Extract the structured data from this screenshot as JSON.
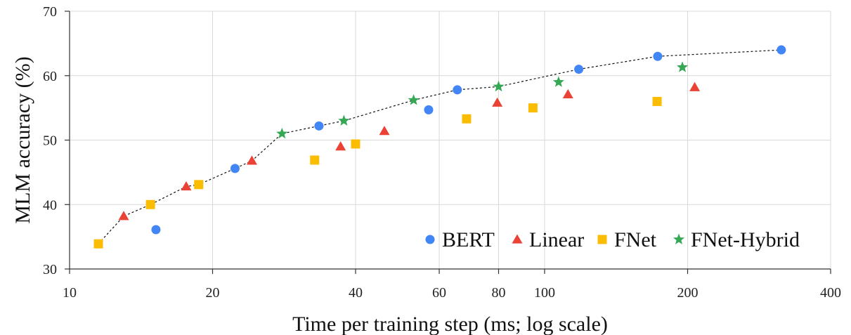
{
  "chart_data": {
    "type": "scatter",
    "xlabel": "Time per training step (ms; log scale)",
    "ylabel": "MLM accuracy (%)",
    "xscale": "log",
    "xlim": [
      10,
      400
    ],
    "ylim": [
      30,
      70
    ],
    "x_ticks": [
      10,
      20,
      40,
      60,
      80,
      100,
      200,
      400
    ],
    "y_ticks": [
      30,
      40,
      50,
      60,
      70
    ],
    "grid": true,
    "legend_position": "bottom-right",
    "series": [
      {
        "name": "BERT",
        "marker": "circle",
        "color": "#4285F4",
        "points": [
          [
            15.2,
            36.1
          ],
          [
            22.3,
            45.6
          ],
          [
            33.5,
            52.2
          ],
          [
            57.0,
            54.7
          ],
          [
            65.5,
            57.8
          ],
          [
            118.0,
            61.0
          ],
          [
            173.0,
            63.0
          ],
          [
            315.0,
            64.0
          ]
        ]
      },
      {
        "name": "Linear",
        "marker": "triangle",
        "color": "#EA4335",
        "points": [
          [
            13.0,
            38.2
          ],
          [
            17.6,
            42.8
          ],
          [
            24.2,
            46.8
          ],
          [
            37.2,
            49.0
          ],
          [
            46.0,
            51.4
          ],
          [
            79.5,
            55.8
          ],
          [
            112.0,
            57.1
          ],
          [
            207.0,
            58.2
          ]
        ]
      },
      {
        "name": "FNet",
        "marker": "square",
        "color": "#FBBC04",
        "points": [
          [
            11.5,
            33.9
          ],
          [
            14.8,
            40.0
          ],
          [
            18.7,
            43.1
          ],
          [
            32.8,
            46.9
          ],
          [
            40.0,
            49.4
          ],
          [
            68.5,
            53.3
          ],
          [
            94.5,
            55.0
          ],
          [
            172.5,
            56.0
          ]
        ]
      },
      {
        "name": "FNet-Hybrid",
        "marker": "star",
        "color": "#34A853",
        "points": [
          [
            28.0,
            51.0
          ],
          [
            37.8,
            53.0
          ],
          [
            53.0,
            56.2
          ],
          [
            80.0,
            58.3
          ],
          [
            107.0,
            59.0
          ],
          [
            195.0,
            61.3
          ]
        ]
      }
    ],
    "pareto_frontier": [
      [
        11.5,
        33.9
      ],
      [
        13.0,
        38.2
      ],
      [
        14.8,
        40.0
      ],
      [
        17.6,
        42.8
      ],
      [
        18.7,
        43.1
      ],
      [
        22.3,
        45.6
      ],
      [
        24.2,
        46.8
      ],
      [
        28.0,
        51.0
      ],
      [
        33.5,
        52.2
      ],
      [
        37.8,
        53.0
      ],
      [
        53.0,
        56.2
      ],
      [
        65.5,
        57.8
      ],
      [
        80.0,
        58.3
      ],
      [
        118.0,
        61.0
      ],
      [
        173.0,
        63.0
      ],
      [
        315.0,
        64.0
      ]
    ]
  }
}
